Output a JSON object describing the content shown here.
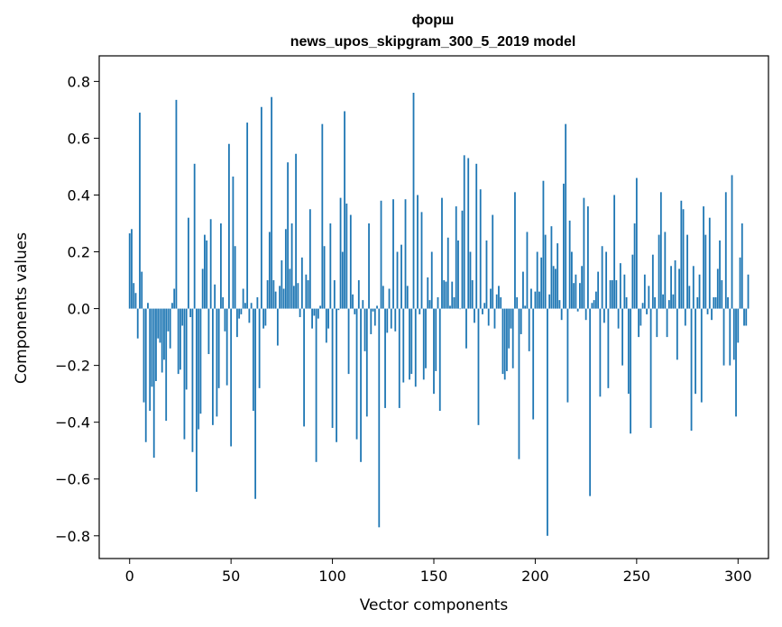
{
  "chart_data": {
    "type": "bar",
    "title_line1": "форш",
    "title_line2": "news_upos_skipgram_300_5_2019 model",
    "xlabel": "Vector components",
    "ylabel": "Components values",
    "xlim": [
      -15,
      315
    ],
    "ylim": [
      -0.88,
      0.89
    ],
    "xticks": [
      0,
      50,
      100,
      150,
      200,
      250,
      300
    ],
    "yticks": [
      -0.8,
      -0.6,
      -0.4,
      -0.2,
      0.0,
      0.2,
      0.4,
      0.6,
      0.8
    ],
    "ytick_labels": [
      "−0.8",
      "−0.6",
      "−0.4",
      "−0.2",
      "0.0",
      "0.2",
      "0.4",
      "0.6",
      "0.8"
    ],
    "xtick_labels": [
      "0",
      "50",
      "100",
      "150",
      "200",
      "250",
      "300"
    ],
    "bar_color": "#1f77b4",
    "grid": false,
    "values": [
      0.265,
      0.28,
      0.09,
      0.055,
      -0.105,
      0.69,
      0.13,
      -0.33,
      -0.47,
      0.02,
      -0.36,
      -0.275,
      -0.525,
      -0.255,
      -0.105,
      -0.12,
      -0.225,
      -0.18,
      -0.395,
      -0.08,
      -0.14,
      0.02,
      0.07,
      0.735,
      -0.23,
      -0.215,
      -0.06,
      -0.46,
      -0.285,
      0.32,
      -0.03,
      -0.505,
      0.51,
      -0.645,
      -0.425,
      -0.37,
      0.14,
      0.26,
      0.24,
      -0.16,
      0.315,
      -0.41,
      0.085,
      -0.38,
      -0.28,
      0.3,
      0.04,
      -0.08,
      -0.27,
      0.58,
      -0.485,
      0.465,
      0.22,
      -0.1,
      -0.035,
      -0.02,
      0.07,
      0.02,
      0.655,
      -0.05,
      0.02,
      -0.36,
      -0.67,
      0.04,
      -0.28,
      0.71,
      -0.07,
      -0.06,
      0.1,
      0.27,
      0.745,
      0.1,
      0.06,
      -0.13,
      0.08,
      0.17,
      0.07,
      0.28,
      0.515,
      0.14,
      0.3,
      0.08,
      0.545,
      0.09,
      -0.03,
      0.18,
      -0.415,
      0.12,
      0.1,
      0.35,
      -0.07,
      -0.025,
      -0.54,
      -0.035,
      0.01,
      0.65,
      0.22,
      -0.12,
      -0.07,
      0.3,
      -0.42,
      0.1,
      -0.47,
      -0.005,
      0.39,
      0.2,
      0.695,
      0.37,
      -0.23,
      0.33,
      0.05,
      -0.02,
      -0.46,
      0.1,
      -0.54,
      0.03,
      -0.15,
      -0.38,
      0.3,
      -0.09,
      -0.01,
      -0.06,
      0.01,
      -0.77,
      0.38,
      0.08,
      -0.35,
      -0.085,
      0.07,
      -0.07,
      0.385,
      -0.08,
      0.2,
      -0.35,
      0.225,
      -0.26,
      0.385,
      0.08,
      -0.25,
      -0.23,
      0.76,
      -0.275,
      0.4,
      -0.02,
      0.34,
      -0.25,
      -0.21,
      0.11,
      0.03,
      0.2,
      -0.3,
      -0.22,
      0.04,
      -0.36,
      0.39,
      0.1,
      0.095,
      0.25,
      0.01,
      0.095,
      0.04,
      0.36,
      0.24,
      0.0,
      0.345,
      0.54,
      -0.14,
      0.53,
      0.2,
      0.1,
      -0.05,
      0.51,
      -0.41,
      0.42,
      -0.02,
      0.02,
      0.24,
      -0.06,
      0.07,
      0.33,
      -0.07,
      0.05,
      0.08,
      0.04,
      -0.23,
      -0.25,
      -0.22,
      -0.14,
      -0.07,
      -0.21,
      0.41,
      0.04,
      -0.53,
      -0.09,
      0.13,
      0.01,
      0.27,
      -0.15,
      0.07,
      -0.39,
      0.06,
      0.2,
      0.06,
      0.18,
      0.45,
      0.26,
      -0.8,
      0.05,
      0.29,
      0.15,
      0.14,
      0.23,
      0.03,
      -0.04,
      0.44,
      0.65,
      -0.33,
      0.31,
      0.2,
      0.09,
      0.12,
      -0.01,
      0.09,
      0.15,
      0.39,
      -0.04,
      0.36,
      -0.66,
      0.02,
      0.03,
      0.06,
      0.13,
      -0.31,
      0.22,
      -0.05,
      0.2,
      -0.28,
      0.1,
      0.1,
      0.4,
      0.1,
      -0.07,
      0.16,
      -0.2,
      0.12,
      0.04,
      -0.3,
      -0.44,
      0.19,
      0.3,
      0.46,
      -0.1,
      -0.06,
      0.02,
      0.12,
      -0.02,
      0.08,
      -0.42,
      0.19,
      0.04,
      -0.1,
      0.26,
      0.41,
      0.05,
      0.27,
      -0.1,
      0.03,
      0.15,
      0.05,
      0.17,
      -0.18,
      0.14,
      0.38,
      0.35,
      -0.06,
      0.26,
      0.08,
      -0.43,
      0.15,
      -0.3,
      0.04,
      0.12,
      -0.33,
      0.36,
      0.26,
      -0.02,
      0.32,
      -0.04,
      0.04,
      0.04,
      0.14,
      0.24,
      0.1,
      -0.2,
      0.41,
      0.04,
      -0.2,
      0.47,
      -0.18,
      -0.38,
      -0.12,
      0.18,
      0.3,
      -0.06,
      -0.06,
      0.12
    ]
  }
}
